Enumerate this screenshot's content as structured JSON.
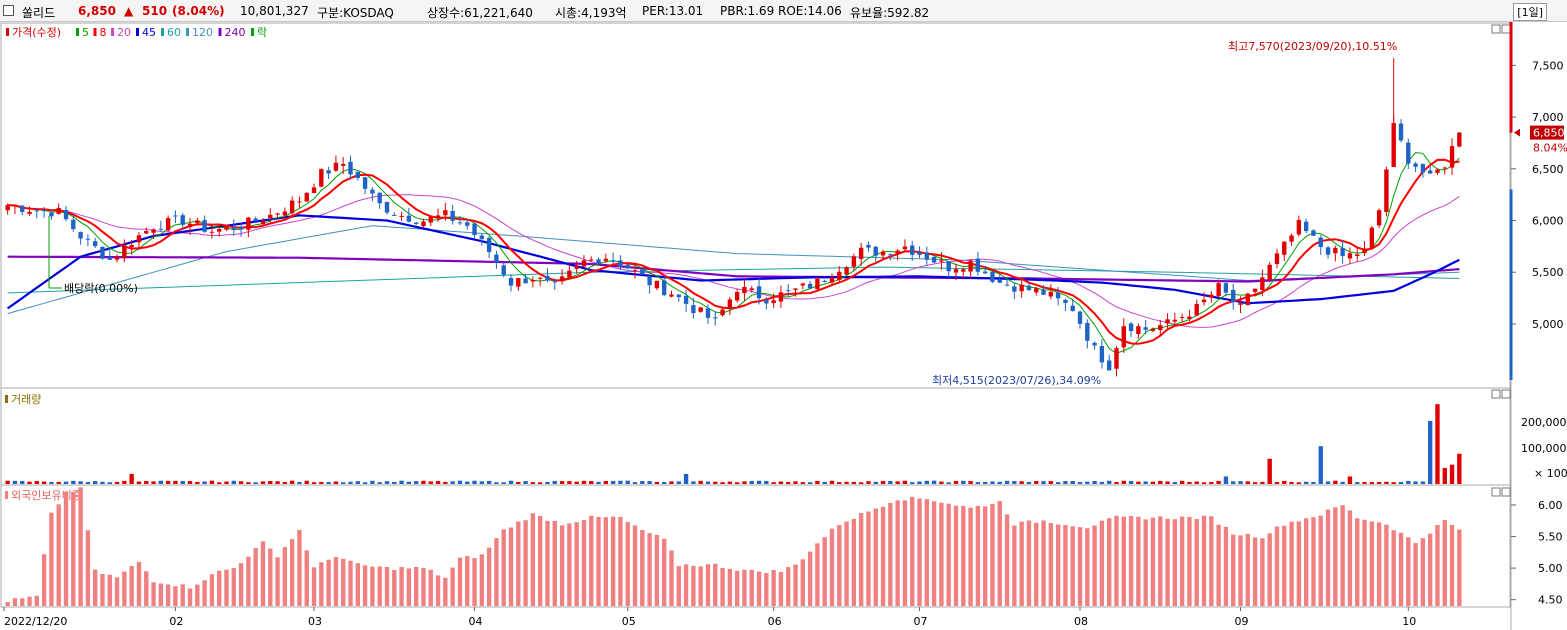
{
  "header": {
    "name": "쏠리드",
    "price": "6,850",
    "change_arrow": "▲",
    "change": "510",
    "change_pct": "(8.04%)",
    "volume": "10,801,327",
    "market": "구분:KOSDAQ",
    "shares": "상장수:61,221,640",
    "market_cap": "시총:4,193억",
    "per": "PER:13.01",
    "pbr": "PBR:1.69",
    "roe": "ROE:14.06",
    "reserve": "유보율:592.82",
    "period": "[1일]"
  },
  "colors": {
    "up": "#e00000",
    "down": "#1f63c6",
    "ma5": "#00a000",
    "ma8": "#ff0000",
    "ma20": "#cc44cc",
    "ma45": "#0000dd",
    "ma60": "#20a0a0",
    "ma120": "#4090c0",
    "ma240": "#8000c0",
    "volume_color": "#8b6f00",
    "foreign_bar": "#f08080"
  },
  "chart_data": [
    {
      "type": "line",
      "title": "가격(수정)",
      "legend": [
        {
          "label": "가격(수정)",
          "color": "#e00000"
        },
        {
          "label": "5",
          "color": "#00a000"
        },
        {
          "label": "8",
          "color": "#ff0000"
        },
        {
          "label": "20",
          "color": "#cc44cc"
        },
        {
          "label": "45",
          "color": "#0000dd"
        },
        {
          "label": "60",
          "color": "#20a0a0"
        },
        {
          "label": "120",
          "color": "#4090c0"
        },
        {
          "label": "240",
          "color": "#8000c0"
        },
        {
          "label": "락",
          "color": "#00a000"
        }
      ],
      "ylim": [
        4400,
        7900
      ],
      "yticks": [
        "5,000",
        "5,500",
        "6,000",
        "6,500",
        "7,000",
        "7,500"
      ],
      "x_labels": [
        "2022/12/20",
        "02",
        "03",
        "04",
        "05",
        "06",
        "07",
        "08",
        "09",
        "10"
      ],
      "annotations": {
        "high": "최고7,570(2023/09/20),10.51%",
        "low": "최저4,515(2023/07/26),34.09%",
        "dividend": "배당락(0.00%)",
        "price_tag": "6,850",
        "pct_tag": "8.04%"
      },
      "close_anchors": [
        [
          0,
          6150
        ],
        [
          4,
          6100
        ],
        [
          7,
          6080
        ],
        [
          10,
          5850
        ],
        [
          14,
          5620
        ],
        [
          17,
          5800
        ],
        [
          20,
          5950
        ],
        [
          24,
          6000
        ],
        [
          28,
          5900
        ],
        [
          32,
          5950
        ],
        [
          36,
          6050
        ],
        [
          40,
          6200
        ],
        [
          43,
          6450
        ],
        [
          46,
          6550
        ],
        [
          48,
          6400
        ],
        [
          51,
          6150
        ],
        [
          54,
          6050
        ],
        [
          57,
          6000
        ],
        [
          60,
          6050
        ],
        [
          63,
          5950
        ],
        [
          66,
          5700
        ],
        [
          69,
          5400
        ],
        [
          72,
          5450
        ],
        [
          75,
          5350
        ],
        [
          79,
          5600
        ],
        [
          82,
          5650
        ],
        [
          85,
          5550
        ],
        [
          88,
          5400
        ],
        [
          91,
          5300
        ],
        [
          94,
          5150
        ],
        [
          97,
          5020
        ],
        [
          100,
          5350
        ],
        [
          104,
          5250
        ],
        [
          107,
          5300
        ],
        [
          111,
          5400
        ],
        [
          114,
          5550
        ],
        [
          117,
          5700
        ],
        [
          120,
          5700
        ],
        [
          123,
          5750
        ],
        [
          126,
          5650
        ],
        [
          129,
          5550
        ],
        [
          132,
          5600
        ],
        [
          136,
          5400
        ],
        [
          139,
          5350
        ],
        [
          142,
          5300
        ],
        [
          146,
          5150
        ],
        [
          149,
          4750
        ],
        [
          151,
          4600
        ],
        [
          153,
          5000
        ],
        [
          156,
          4950
        ],
        [
          159,
          5000
        ],
        [
          163,
          5150
        ],
        [
          166,
          5350
        ],
        [
          169,
          5150
        ],
        [
          171,
          5350
        ],
        [
          174,
          5650
        ],
        [
          177,
          5950
        ],
        [
          180,
          5750
        ],
        [
          183,
          5650
        ],
        [
          186,
          5700
        ],
        [
          188,
          6100
        ],
        [
          190,
          6900
        ],
        [
          192,
          6600
        ],
        [
          195,
          6400
        ],
        [
          197,
          6550
        ],
        [
          199,
          6850
        ]
      ],
      "ma45_anchors": [
        [
          0,
          5150
        ],
        [
          10,
          5650
        ],
        [
          20,
          5850
        ],
        [
          30,
          5950
        ],
        [
          40,
          6050
        ],
        [
          52,
          6000
        ],
        [
          65,
          5800
        ],
        [
          80,
          5520
        ],
        [
          95,
          5420
        ],
        [
          110,
          5450
        ],
        [
          125,
          5460
        ],
        [
          140,
          5430
        ],
        [
          150,
          5400
        ],
        [
          160,
          5330
        ],
        [
          170,
          5200
        ],
        [
          180,
          5240
        ],
        [
          190,
          5320
        ],
        [
          195,
          5480
        ],
        [
          199,
          5620
        ]
      ],
      "ma240_anchors": [
        [
          0,
          5650
        ],
        [
          40,
          5640
        ],
        [
          80,
          5580
        ],
        [
          100,
          5460
        ],
        [
          140,
          5440
        ],
        [
          170,
          5410
        ],
        [
          190,
          5480
        ],
        [
          199,
          5530
        ]
      ],
      "ma120_anchors": [
        [
          0,
          5100
        ],
        [
          30,
          5700
        ],
        [
          50,
          5950
        ],
        [
          70,
          5850
        ],
        [
          100,
          5680
        ],
        [
          130,
          5620
        ],
        [
          170,
          5420
        ],
        [
          199,
          5500
        ]
      ],
      "ma60_anchors": [
        [
          0,
          5300
        ],
        [
          40,
          5400
        ],
        [
          80,
          5500
        ],
        [
          120,
          5550
        ],
        [
          160,
          5500
        ],
        [
          199,
          5440
        ]
      ]
    },
    {
      "type": "bar",
      "title": "거래량",
      "yticks": [
        "200,000",
        "100,000"
      ],
      "unit": "× 100",
      "spikes": [
        [
          17,
          0.12
        ],
        [
          93,
          0.12
        ],
        [
          167,
          0.09
        ],
        [
          173,
          0.3
        ],
        [
          180,
          0.45
        ],
        [
          184,
          0.09
        ],
        [
          195,
          0.75
        ],
        [
          196,
          0.95
        ],
        [
          197,
          0.19
        ],
        [
          198,
          0.23
        ],
        [
          199,
          0.36
        ]
      ]
    },
    {
      "type": "bar",
      "title": "외국인보유비중",
      "yticks": [
        "6.00",
        "5.50",
        "5.00",
        "4.50"
      ],
      "ylim": [
        4.4,
        6.3
      ],
      "anchors": [
        [
          0,
          4.48
        ],
        [
          4,
          4.55
        ],
        [
          6,
          5.85
        ],
        [
          8,
          6.2
        ],
        [
          10,
          6.25
        ],
        [
          12,
          4.95
        ],
        [
          15,
          4.85
        ],
        [
          18,
          5.1
        ],
        [
          20,
          4.8
        ],
        [
          25,
          4.7
        ],
        [
          29,
          4.95
        ],
        [
          31,
          5.0
        ],
        [
          35,
          5.4
        ],
        [
          37,
          5.2
        ],
        [
          40,
          5.6
        ],
        [
          42,
          5.0
        ],
        [
          45,
          5.2
        ],
        [
          48,
          5.05
        ],
        [
          52,
          5.0
        ],
        [
          57,
          5.0
        ],
        [
          60,
          4.85
        ],
        [
          62,
          5.15
        ],
        [
          65,
          5.2
        ],
        [
          68,
          5.6
        ],
        [
          72,
          5.85
        ],
        [
          76,
          5.7
        ],
        [
          80,
          5.8
        ],
        [
          84,
          5.8
        ],
        [
          86,
          5.65
        ],
        [
          90,
          5.45
        ],
        [
          92,
          5.05
        ],
        [
          97,
          5.05
        ],
        [
          99,
          5.0
        ],
        [
          102,
          4.95
        ],
        [
          106,
          4.95
        ],
        [
          108,
          5.05
        ],
        [
          112,
          5.5
        ],
        [
          114,
          5.7
        ],
        [
          118,
          5.9
        ],
        [
          122,
          6.1
        ],
        [
          126,
          6.1
        ],
        [
          132,
          5.95
        ],
        [
          136,
          6.05
        ],
        [
          138,
          5.7
        ],
        [
          142,
          5.75
        ],
        [
          148,
          5.65
        ],
        [
          152,
          5.8
        ],
        [
          157,
          5.8
        ],
        [
          165,
          5.8
        ],
        [
          168,
          5.55
        ],
        [
          172,
          5.5
        ],
        [
          175,
          5.7
        ],
        [
          180,
          5.85
        ],
        [
          183,
          6.0
        ],
        [
          185,
          5.8
        ],
        [
          189,
          5.7
        ],
        [
          193,
          5.4
        ],
        [
          197,
          5.75
        ],
        [
          199,
          5.6
        ]
      ]
    }
  ]
}
